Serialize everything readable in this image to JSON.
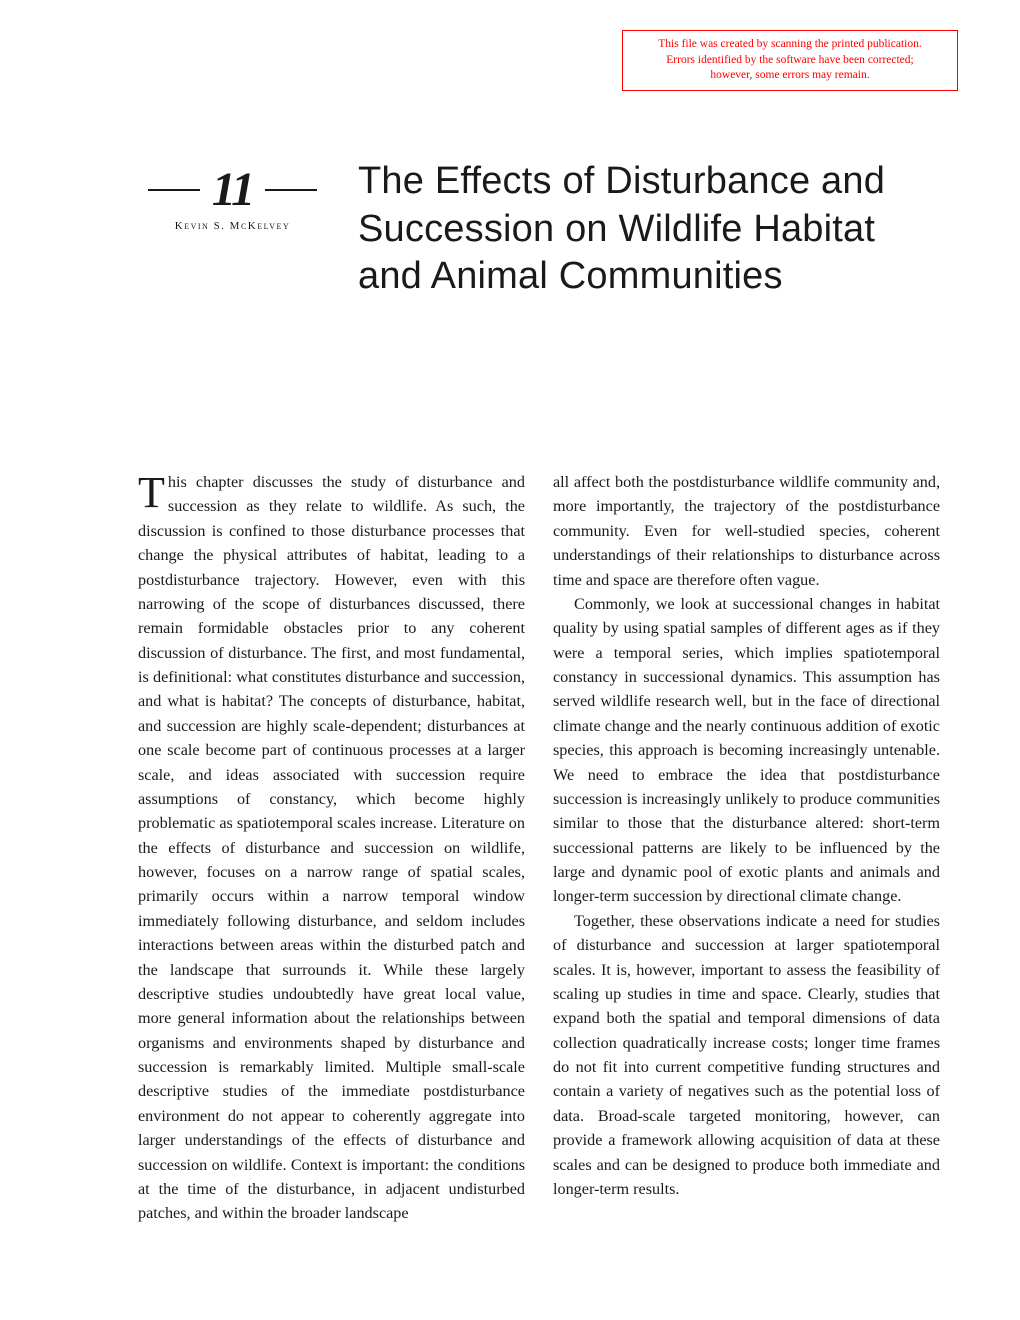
{
  "notice": {
    "line1": "This file was created by scanning the printed publication.",
    "line2": "Errors identified by the software have been corrected;",
    "line3": "however, some errors may remain.",
    "border_color": "#ff0000",
    "text_color": "#ff0000"
  },
  "chapter": {
    "number": "11",
    "author": "Kevin S. McKelvey",
    "title": "The Effects of Disturbance and Succession on Wildlife Habitat and Animal Communities"
  },
  "body": {
    "col1": {
      "p1": "This chapter discusses the study of disturbance and succession as they relate to wildlife. As such, the discussion is confined to those disturbance processes that change the physical attributes of habitat, leading to a postdisturbance trajectory. However, even with this narrowing of the scope of disturbances discussed, there remain formidable obstacles prior to any coherent discussion of disturbance. The first, and most fundamental, is definitional: what constitutes disturbance and succession, and what is habitat? The concepts of disturbance, habitat, and succession are highly scale-dependent; disturbances at one scale become part of continuous processes at a larger scale, and ideas associated with succession require assumptions of constancy, which become highly problematic as spatiotemporal scales increase. Literature on the effects of disturbance and succession on wildlife, however, focuses on a narrow range of spatial scales, primarily occurs within a narrow temporal window immediately following disturbance, and seldom includes interactions between areas within the disturbed patch and the landscape that surrounds it. While these largely descriptive studies undoubtedly have great local value, more general information about the relationships between organisms and environments shaped by disturbance and succession is remarkably limited. Multiple small-scale descriptive studies of the immediate postdisturbance environment do not appear to coherently aggregate into larger understandings of the effects of disturbance and succession on wildlife. Context is important: the conditions at the time of the disturbance, in adjacent undisturbed patches, and within the broader landscape"
    },
    "col2": {
      "p1": "all affect both the postdisturbance wildlife community and, more importantly, the trajectory of the postdisturbance community. Even for well-studied species, coherent understandings of their relationships to disturbance across time and space are therefore often vague.",
      "p2": "Commonly, we look at successional changes in habitat quality by using spatial samples of different ages as if they were a temporal series, which implies spatiotemporal constancy in successional dynamics. This assumption has served wildlife research well, but in the face of directional climate change and the nearly continuous addition of exotic species, this approach is becoming increasingly untenable. We need to embrace the idea that postdisturbance succession is increasingly unlikely to produce communities similar to those that the disturbance altered: short-term successional patterns are likely to be influenced by the large and dynamic pool of exotic plants and animals and longer-term succession by directional climate change.",
      "p3": "Together, these observations indicate a need for studies of disturbance and succession at larger spatiotemporal scales. It is, however, important to assess the feasibility of scaling up studies in time and space. Clearly, studies that expand both the spatial and temporal dimensions of data collection quadratically increase costs; longer time frames do not fit into current competitive funding structures and contain a variety of negatives such as the potential loss of data. Broad-scale targeted monitoring, however, can provide a framework allowing acquisition of data at these scales and can be designed to produce both immediate and longer-term results."
    }
  },
  "styles": {
    "page_bg": "#ffffff",
    "text_color": "#1a1a1a",
    "title_fontsize": 38,
    "body_fontsize": 16.2,
    "chapter_num_fontsize": 48
  }
}
